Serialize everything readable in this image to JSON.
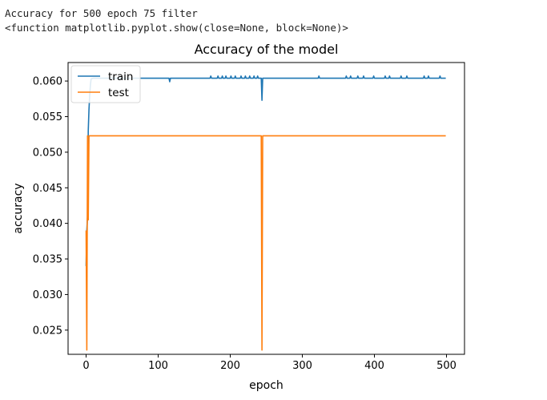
{
  "output": {
    "line1": "Accuracy for 500 epoch 75 filter",
    "line2": "<function matplotlib.pyplot.show(close=None, block=None)>"
  },
  "chart_data": {
    "type": "line",
    "title": "Accuracy of the model",
    "xlabel": "epoch",
    "ylabel": "accuracy",
    "xlim": [
      -25,
      525
    ],
    "ylim": [
      0.0216,
      0.0626
    ],
    "xticks": [
      0,
      100,
      200,
      300,
      400,
      500
    ],
    "xtick_labels": [
      "0",
      "100",
      "200",
      "300",
      "400",
      "500"
    ],
    "yticks": [
      0.025,
      0.03,
      0.035,
      0.04,
      0.045,
      0.05,
      0.055,
      0.06
    ],
    "ytick_labels": [
      "0.025",
      "0.030",
      "0.035",
      "0.040",
      "0.045",
      "0.050",
      "0.055",
      "0.060"
    ],
    "legend_position": "top-left",
    "series": [
      {
        "name": "train",
        "color": "#1f77b4",
        "x": [
          0,
          1,
          2,
          3,
          4,
          5,
          6,
          7,
          10,
          115,
          116,
          117,
          172,
          173,
          174,
          182,
          183,
          184,
          188,
          189,
          190,
          193,
          194,
          195,
          200,
          201,
          202,
          206,
          207,
          208,
          214,
          215,
          216,
          220,
          221,
          222,
          226,
          227,
          228,
          232,
          233,
          234,
          237,
          238,
          239,
          243,
          244,
          245,
          246,
          247,
          322,
          323,
          324,
          360,
          361,
          362,
          366,
          367,
          368,
          376,
          377,
          378,
          384,
          385,
          386,
          398,
          399,
          400,
          414,
          415,
          416,
          420,
          421,
          422,
          436,
          437,
          438,
          444,
          445,
          446,
          468,
          469,
          470,
          474,
          475,
          476,
          490,
          491,
          492,
          499
        ],
        "values": [
          0.034,
          0.039,
          0.041,
          0.053,
          0.056,
          0.058,
          0.0595,
          0.0603,
          0.0604,
          0.0604,
          0.0599,
          0.0604,
          0.0604,
          0.0607,
          0.0604,
          0.0604,
          0.0607,
          0.0604,
          0.0604,
          0.0607,
          0.0604,
          0.0604,
          0.0607,
          0.0604,
          0.0604,
          0.0607,
          0.0604,
          0.0604,
          0.0607,
          0.0604,
          0.0604,
          0.0607,
          0.0604,
          0.0604,
          0.0607,
          0.0604,
          0.0604,
          0.0607,
          0.0604,
          0.0604,
          0.0607,
          0.0604,
          0.0604,
          0.0607,
          0.0604,
          0.0604,
          0.0573,
          0.0604,
          0.0604,
          0.0604,
          0.0604,
          0.0607,
          0.0604,
          0.0604,
          0.0607,
          0.0604,
          0.0604,
          0.0607,
          0.0604,
          0.0604,
          0.0607,
          0.0604,
          0.0604,
          0.0607,
          0.0604,
          0.0604,
          0.0607,
          0.0604,
          0.0604,
          0.0607,
          0.0604,
          0.0604,
          0.0607,
          0.0604,
          0.0604,
          0.0607,
          0.0604,
          0.0604,
          0.0607,
          0.0604,
          0.0604,
          0.0607,
          0.0604,
          0.0604,
          0.0607,
          0.0604,
          0.0604,
          0.0607,
          0.0604,
          0.0604
        ]
      },
      {
        "name": "test",
        "color": "#ff7f0e",
        "x": [
          0,
          1,
          2,
          3,
          4,
          5,
          243,
          244,
          245,
          499
        ],
        "values": [
          0.039,
          0.0222,
          0.0523,
          0.0405,
          0.0523,
          0.0523,
          0.0523,
          0.0222,
          0.0523,
          0.0523
        ]
      }
    ]
  }
}
